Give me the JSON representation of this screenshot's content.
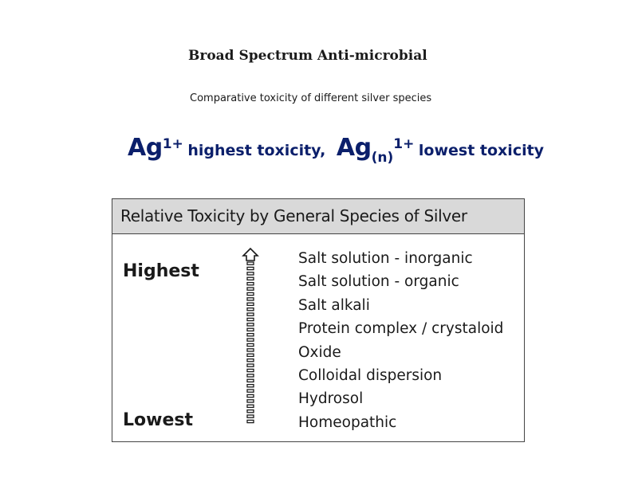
{
  "title": "Broad Spectrum Anti-microbial",
  "subtitle": "Comparative toxicity of different silver species",
  "headline": {
    "symbol_1": "Ag",
    "superscript_1": "1+",
    "text_1": "highest toxicity,",
    "symbol_2": "Ag",
    "subscript_2": "(n)",
    "superscript_2": "1+",
    "text_2": "lowest toxicity",
    "color": "#0b1f6b"
  },
  "table": {
    "header": "Relative Toxicity by General Species of Silver",
    "header_bg": "#d9d9d9",
    "highest_label": "Highest",
    "lowest_label": "Lowest",
    "arrow_icon": "dashed-up-arrow-icon",
    "species": [
      "Salt solution - inorganic",
      "Salt solution - organic",
      "Salt alkali",
      "Protein complex / crystaloid",
      "Oxide",
      "Colloidal dispersion",
      "Hydrosol",
      "Homeopathic"
    ]
  }
}
